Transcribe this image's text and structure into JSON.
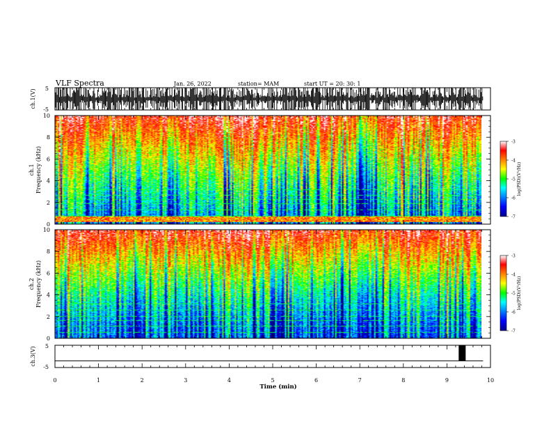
{
  "header": {
    "title": "VLF Spectra",
    "date": "Jan. 26, 2022",
    "station": "station= MAM",
    "start": "start UT =  20: 30: 1"
  },
  "chart_data": [
    {
      "type": "line",
      "panel": "ch1-waveform",
      "ylabel": "ch.1(V)",
      "ylim": [
        -5,
        5
      ],
      "yticks": [
        "5",
        "-5"
      ],
      "xlim": [
        0,
        10
      ],
      "description_values": "dense vertical impulses spanning nearly full range"
    },
    {
      "type": "heatmap",
      "panel": "ch1-spectrogram",
      "ylabel": "ch.1\nFrequency (kHz)",
      "ylabel_line1": "ch.1",
      "ylabel_line2": "Frequency (kHz)",
      "ylim": [
        0,
        10
      ],
      "yticks": [
        "0",
        "2",
        "4",
        "6",
        "8",
        "10"
      ],
      "xlim": [
        0,
        10
      ],
      "colorbar": {
        "label": "log(PSD)(V²/Hz)",
        "ticks": [
          "-3",
          "-4",
          "-5",
          "-6",
          "-7"
        ],
        "range": [
          -7,
          -3
        ]
      }
    },
    {
      "type": "heatmap",
      "panel": "ch2-spectrogram",
      "ylabel_line1": "ch.2",
      "ylabel_line2": "Frequency (kHz)",
      "ylim": [
        0,
        10
      ],
      "yticks": [
        "0",
        "2",
        "4",
        "6",
        "8",
        "10"
      ],
      "xlim": [
        0,
        10
      ],
      "colorbar": {
        "label": "log(PSD)(V²/Hz)",
        "ticks": [
          "-3",
          "-4",
          "-5",
          "-6",
          "-7"
        ],
        "range": [
          -7,
          -3
        ]
      }
    },
    {
      "type": "line",
      "panel": "ch3-waveform",
      "ylabel": "ch.3(V)",
      "ylim": [
        -5,
        5
      ],
      "yticks": [
        "5",
        "-5"
      ],
      "xlim": [
        0,
        10
      ],
      "xlabel": "Time (min)",
      "xticks": [
        "0",
        "1",
        "2",
        "3",
        "4",
        "5",
        "6",
        "7",
        "8",
        "9",
        "10"
      ],
      "series": [
        {
          "x": [
            0,
            9.83
          ],
          "y": [
            -2,
            -2
          ]
        }
      ],
      "pulse": {
        "x_start": 9.27,
        "x_end": 9.43,
        "y_low": -2,
        "y_high": 5
      }
    }
  ]
}
